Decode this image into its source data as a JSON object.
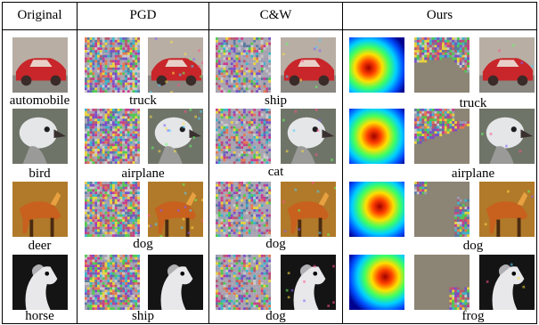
{
  "columns": [
    "Original",
    "PGD",
    "C&W",
    "Ours"
  ],
  "rows": [
    {
      "cls": "automobile",
      "pgd": "truck",
      "cw": "ship",
      "ours": "truck",
      "colors": {
        "bg": "#b8aea4",
        "main": "#c8262a",
        "accent": "#e8d0c8",
        "dark": "#3a2a28"
      }
    },
    {
      "cls": "bird",
      "pgd": "airplane",
      "cw": "cat",
      "ours": "airplane",
      "colors": {
        "bg": "#6f7468",
        "main": "#e4e6e8",
        "accent": "#9a9a98",
        "dark": "#1e1e20"
      }
    },
    {
      "cls": "deer",
      "pgd": "dog",
      "cw": "dog",
      "ours": "dog",
      "colors": {
        "bg": "#b07a2a",
        "main": "#c8601e",
        "accent": "#e8a040",
        "dark": "#4a2a10"
      }
    },
    {
      "cls": "horse",
      "pgd": "ship",
      "cw": "dog",
      "ours": "frog",
      "colors": {
        "bg": "#141414",
        "main": "#e8e8ea",
        "accent": "#b0b0b4",
        "dark": "#000000"
      }
    }
  ],
  "ours_heatmap_palette": [
    "#00008f",
    "#0050ff",
    "#00d0ff",
    "#40ff60",
    "#ffe000",
    "#ff4000",
    "#a00000"
  ],
  "ours_perturb_bg": "#8c8474",
  "noise_palette": [
    "#c83c8c",
    "#3cb4c8",
    "#e6d23c",
    "#7850c8",
    "#50c850",
    "#e67850",
    "#9a9ab4",
    "#c8c8c8",
    "#5a78a0",
    "#b45a6e"
  ]
}
